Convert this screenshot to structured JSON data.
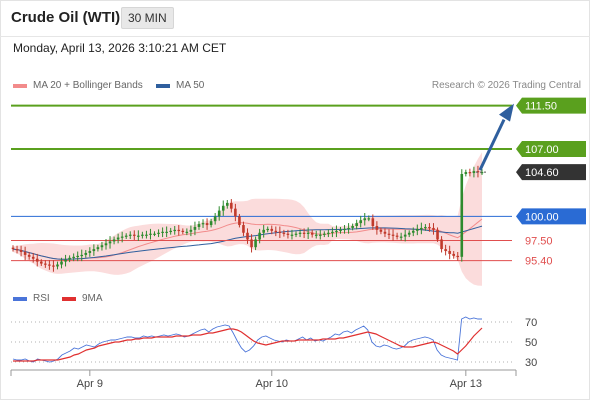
{
  "header": {
    "instrument": "Crude Oil (WTI)",
    "timeframe": "30 MIN"
  },
  "timestamp": "Monday, April 13, 2026 3:10:21 AM CET",
  "legend": {
    "ma20": "MA 20 + Bollinger Bands",
    "ma50": "MA 50",
    "credit": "Research © 2026 Trading Central"
  },
  "rsi_legend": {
    "rsi": "RSI",
    "ma": "9MA"
  },
  "colors": {
    "up": "#2e8b2e",
    "down": "#c0392b",
    "bollinger": "#fbdcdc",
    "ma20": "#f28b8b",
    "ma50": "#2f5f9e",
    "resistance": "#5aa01e",
    "pivot": "#2a6bd4",
    "support": "#e04e4e",
    "last": "#333333",
    "rsi": "#4a74d9",
    "rsi_ma": "#e03030"
  },
  "chart_data": [
    {
      "type": "candlestick",
      "ylim": [
        93.6,
        112.5
      ],
      "x_ticks": [
        "Apr 9",
        "Apr 10",
        "Apr 13"
      ],
      "levels": [
        {
          "label": "111.50",
          "value": 111.5,
          "role": "resistance"
        },
        {
          "label": "107.00",
          "value": 107.0,
          "role": "resistance"
        },
        {
          "label": "104.60",
          "value": 104.6,
          "role": "last"
        },
        {
          "label": "100.00",
          "value": 100.0,
          "role": "pivot"
        },
        {
          "label": "97.50",
          "value": 97.5,
          "role": "support"
        },
        {
          "label": "95.40",
          "value": 95.4,
          "role": "support"
        }
      ],
      "forecast": {
        "from": 104.6,
        "to": 111.5,
        "direction": "up"
      },
      "close": [
        96.6,
        96.5,
        96.3,
        96.0,
        95.8,
        95.6,
        95.3,
        95.1,
        95.0,
        94.9,
        94.8,
        95.0,
        95.3,
        95.5,
        95.7,
        95.8,
        95.9,
        96.0,
        96.2,
        96.4,
        96.6,
        96.8,
        97.0,
        97.2,
        97.4,
        97.6,
        97.8,
        97.9,
        98.0,
        98.1,
        98.0,
        98.0,
        98.1,
        98.1,
        98.2,
        98.2,
        98.3,
        98.4,
        98.4,
        98.5,
        98.6,
        98.5,
        98.4,
        98.4,
        98.6,
        98.9,
        99.2,
        99.3,
        99.1,
        99.5,
        100.0,
        100.6,
        101.1,
        101.4,
        100.8,
        100.0,
        99.1,
        98.3,
        97.6,
        96.8,
        97.6,
        98.3,
        98.6,
        98.7,
        98.5,
        98.4,
        98.3,
        98.2,
        98.1,
        98.1,
        98.2,
        98.3,
        98.2,
        98.3,
        98.1,
        98.1,
        98.1,
        98.2,
        98.3,
        98.4,
        98.5,
        98.6,
        98.7,
        98.8,
        99.0,
        99.3,
        99.6,
        99.8,
        99.8,
        99.0,
        98.6,
        98.4,
        98.2,
        98.1,
        98.0,
        97.9,
        97.9,
        98.1,
        98.3,
        98.5,
        98.7,
        98.8,
        98.9,
        98.8,
        98.6,
        97.6,
        96.6,
        96.4,
        96.1,
        95.9,
        95.8,
        104.4,
        104.6,
        104.5,
        104.7,
        104.6,
        104.6
      ]
    },
    {
      "type": "line",
      "title": "RSI",
      "ylim": [
        25,
        80
      ],
      "y_ticks": [
        70,
        50,
        30
      ],
      "series": [
        {
          "name": "RSI",
          "values": [
            33,
            32,
            32,
            33,
            31,
            30,
            33,
            32,
            31,
            30,
            31,
            33,
            37,
            39,
            41,
            44,
            43,
            45,
            47,
            46,
            45,
            48,
            50,
            51,
            52,
            52,
            53,
            54,
            55,
            55,
            54,
            54,
            56,
            55,
            56,
            55,
            56,
            57,
            56,
            57,
            58,
            57,
            55,
            56,
            58,
            60,
            62,
            63,
            60,
            63,
            65,
            66,
            67,
            66,
            59,
            51,
            44,
            40,
            42,
            46,
            52,
            55,
            56,
            54,
            52,
            51,
            50,
            52,
            51,
            51,
            53,
            55,
            52,
            54,
            51,
            52,
            51,
            53,
            55,
            58,
            57,
            60,
            61,
            59,
            62,
            64,
            66,
            62,
            50,
            46,
            45,
            47,
            46,
            44,
            43,
            44,
            46,
            50,
            52,
            53,
            54,
            55,
            54,
            52,
            42,
            37,
            35,
            34,
            33,
            32,
            73,
            75,
            73,
            74,
            73,
            73
          ]
        },
        {
          "name": "9MA",
          "values": [
            31,
            31,
            31,
            31,
            31,
            31,
            32,
            32,
            32,
            32,
            32,
            32,
            33,
            34,
            35,
            37,
            38,
            40,
            42,
            43,
            44,
            46,
            47,
            48,
            49,
            50,
            50,
            51,
            52,
            52,
            53,
            53,
            54,
            54,
            54,
            55,
            55,
            55,
            55,
            55,
            56,
            56,
            56,
            56,
            57,
            57,
            57,
            58,
            59,
            59,
            60,
            61,
            62,
            63,
            63,
            62,
            60,
            57,
            54,
            51,
            49,
            48,
            47,
            48,
            49,
            50,
            51,
            51,
            51,
            51,
            52,
            52,
            52,
            52,
            52,
            52,
            53,
            53,
            53,
            53,
            54,
            54,
            55,
            56,
            57,
            58,
            59,
            60,
            59,
            58,
            56,
            54,
            52,
            50,
            48,
            46,
            45,
            45,
            45,
            46,
            47,
            48,
            49,
            50,
            49,
            47,
            45,
            43,
            41,
            38,
            42,
            46,
            51,
            56,
            60,
            64
          ]
        }
      ]
    }
  ]
}
